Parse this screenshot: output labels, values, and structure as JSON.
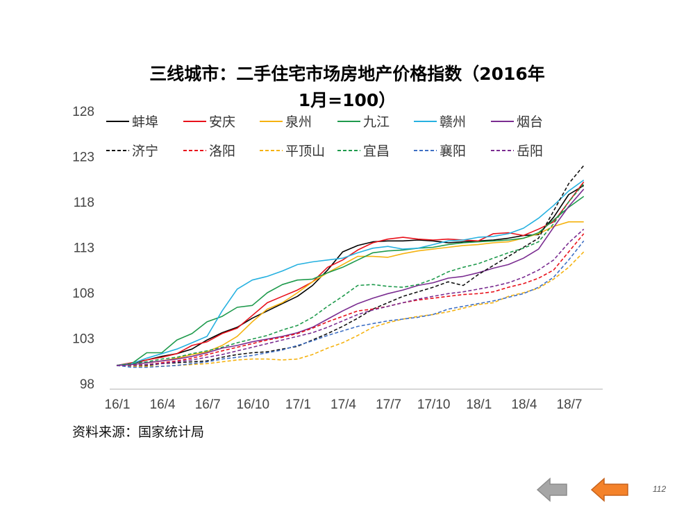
{
  "title": {
    "line1": "三线城市：二手住宅市场房地产价格指数（2016年",
    "line2": "1月=100）"
  },
  "source": "资料来源：国家统计局",
  "page_number": "112",
  "nav": {
    "prev_icon": "left-arrow-gray-icon",
    "next_icon": "left-arrow-orange-icon"
  },
  "chart_data": {
    "type": "line",
    "x_tick_labels": [
      "16/1",
      "16/4",
      "16/7",
      "16/10",
      "17/1",
      "17/4",
      "17/7",
      "17/10",
      "18/1",
      "18/4",
      "18/7"
    ],
    "x_tick_month_index": [
      0,
      3,
      6,
      9,
      12,
      15,
      18,
      21,
      24,
      27,
      30
    ],
    "y_ticks": [
      98,
      103,
      108,
      113,
      118,
      123,
      128
    ],
    "ylim": [
      98,
      128
    ],
    "grid": false,
    "legend_position": "top-left",
    "series": [
      {
        "name": "蚌埠",
        "color": "#000000",
        "dash": "solid",
        "values": [
          100,
          100.2,
          100.6,
          101,
          101.3,
          101.8,
          102.8,
          103.6,
          104.2,
          105.2,
          106,
          106.8,
          107.6,
          108.8,
          110.5,
          112.5,
          113.2,
          113.6,
          113.7,
          113.7,
          113.8,
          113.7,
          113.5,
          113.6,
          113.7,
          113.8,
          114,
          114.3,
          114.4,
          116.3,
          118.8,
          119.8
        ]
      },
      {
        "name": "安庆",
        "color": "#e8101a",
        "dash": "solid",
        "values": [
          100,
          100.3,
          100.6,
          100.9,
          101.3,
          102.2,
          102.6,
          103.5,
          104.1,
          105.5,
          106.9,
          107.6,
          108.3,
          109.2,
          110.8,
          111.6,
          112.7,
          113.5,
          113.9,
          114.1,
          113.9,
          113.8,
          113.9,
          113.8,
          113.7,
          114.5,
          114.6,
          114.3,
          115,
          115.8,
          118,
          120.2
        ]
      },
      {
        "name": "泉州",
        "color": "#f5b20f",
        "dash": "solid",
        "values": [
          100,
          100.1,
          100.3,
          100.5,
          100.8,
          101.2,
          101.5,
          102.2,
          103.2,
          104.8,
          106.2,
          106.9,
          108,
          109.2,
          110.2,
          111.1,
          112,
          112,
          111.9,
          112.3,
          112.6,
          112.8,
          113,
          113.2,
          113.3,
          113.5,
          113.6,
          114,
          114.5,
          115.3,
          115.8,
          115.8
        ]
      },
      {
        "name": "九江",
        "color": "#1e9a4c",
        "dash": "solid",
        "values": [
          100,
          100.2,
          101.4,
          101.4,
          102.8,
          103.5,
          104.8,
          105.4,
          106.4,
          106.6,
          108,
          108.9,
          109.4,
          109.5,
          110.2,
          110.8,
          111.6,
          112.4,
          112.6,
          112.7,
          112.9,
          113,
          113.3,
          113.5,
          113.6,
          113.7,
          113.8,
          114,
          114.6,
          116,
          117.4,
          118.6
        ]
      },
      {
        "name": "赣州",
        "color": "#26b1e0",
        "dash": "solid",
        "values": [
          100,
          100.2,
          100.8,
          101.3,
          101.8,
          102.5,
          103.2,
          106,
          108.4,
          109.4,
          109.8,
          110.4,
          111.1,
          111.4,
          111.6,
          111.8,
          112.4,
          112.9,
          113.1,
          112.8,
          112.9,
          113.3,
          113.7,
          113.8,
          114.1,
          114.2,
          114.5,
          115.1,
          116.2,
          117.6,
          119.2,
          120.4
        ]
      },
      {
        "name": "烟台",
        "color": "#7a2c90",
        "dash": "solid",
        "values": [
          100,
          100.1,
          100.3,
          100.5,
          100.7,
          101,
          101.4,
          101.9,
          102.2,
          102.6,
          102.9,
          103.2,
          103.6,
          104.2,
          105.1,
          106,
          106.8,
          107.4,
          107.9,
          108.3,
          108.8,
          109.1,
          109.6,
          109.8,
          110.2,
          110.7,
          111.1,
          111.8,
          112.8,
          115.2,
          117.5,
          119.4
        ]
      },
      {
        "name": "济宁",
        "color": "#111111",
        "dash": "dashed",
        "values": [
          100,
          100,
          100,
          100.2,
          100.3,
          100.4,
          100.5,
          100.9,
          101.2,
          101.4,
          101.5,
          101.8,
          102.1,
          102.8,
          103.5,
          104.3,
          105.2,
          106.2,
          106.9,
          107.6,
          108.1,
          108.6,
          109.2,
          108.8,
          110,
          111,
          112,
          113,
          114,
          117,
          120,
          122
        ]
      },
      {
        "name": "洛阳",
        "color": "#e8101a",
        "dash": "dashed",
        "values": [
          100,
          100,
          100.1,
          100.3,
          100.5,
          100.8,
          101.2,
          101.6,
          102,
          102.4,
          102.8,
          103.1,
          103.5,
          104.1,
          104.8,
          105.4,
          106,
          106.2,
          106.5,
          106.9,
          107.2,
          107.4,
          107.6,
          107.8,
          107.9,
          108.1,
          108.6,
          109,
          109.6,
          110.5,
          112.5,
          114.5
        ]
      },
      {
        "name": "平顶山",
        "color": "#f5b20f",
        "dash": "dashed",
        "values": [
          100,
          99.9,
          99.9,
          99.9,
          100,
          100.1,
          100.2,
          100.4,
          100.6,
          100.7,
          100.7,
          100.6,
          100.7,
          101.2,
          101.9,
          102.5,
          103.3,
          104.2,
          104.7,
          105.1,
          105.4,
          105.6,
          105.9,
          106.3,
          106.7,
          106.9,
          107.6,
          108,
          108.5,
          109.5,
          110.8,
          112.5
        ]
      },
      {
        "name": "宜昌",
        "color": "#1e9a4c",
        "dash": "dashed",
        "values": [
          100,
          100.2,
          100.4,
          100.7,
          100.9,
          101.3,
          101.6,
          102,
          102.5,
          102.9,
          103.3,
          103.9,
          104.4,
          105.3,
          106.5,
          107.6,
          108.8,
          108.9,
          108.7,
          108.6,
          108.9,
          109.5,
          110.3,
          110.8,
          111.2,
          111.8,
          112.4,
          112.9,
          113.6,
          115.6,
          118,
          120
        ]
      },
      {
        "name": "襄阳",
        "color": "#3e6fc4",
        "dash": "dashed",
        "values": [
          100,
          99.8,
          99.8,
          99.9,
          100,
          100.2,
          100.4,
          100.7,
          100.9,
          101.1,
          101.4,
          101.7,
          102.2,
          102.7,
          103.3,
          103.8,
          104.3,
          104.6,
          104.9,
          105.1,
          105.3,
          105.6,
          106.2,
          106.5,
          106.8,
          107.1,
          107.5,
          107.9,
          108.6,
          109.7,
          111.6,
          113.7
        ]
      },
      {
        "name": "岳阳",
        "color": "#7a2c90",
        "dash": "dashed",
        "values": [
          100,
          100,
          100.1,
          100.2,
          100.4,
          100.6,
          100.9,
          101.2,
          101.6,
          102,
          102.4,
          102.8,
          103.2,
          103.6,
          104.2,
          104.9,
          105.6,
          106.1,
          106.5,
          106.9,
          107.3,
          107.6,
          107.9,
          108.1,
          108.4,
          108.7,
          109.1,
          109.7,
          110.5,
          111.6,
          113.5,
          115
        ]
      }
    ]
  }
}
